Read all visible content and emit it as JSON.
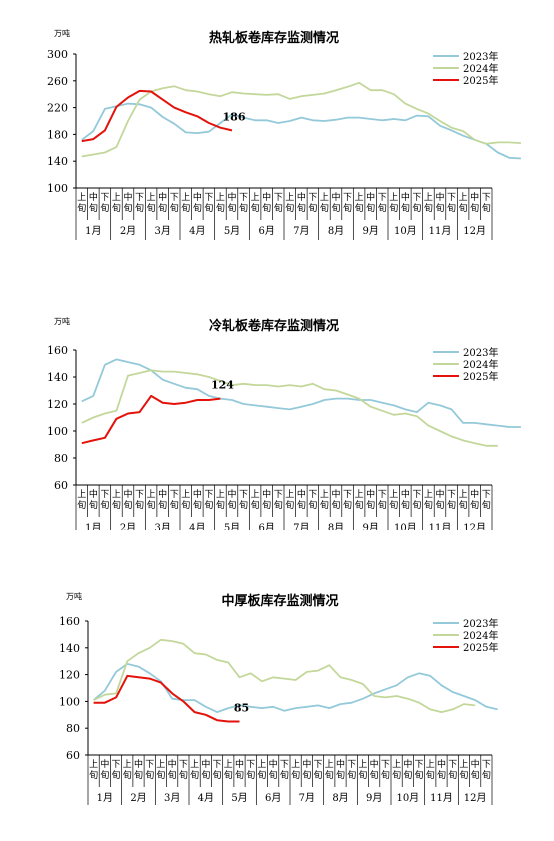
{
  "series_colors": {
    "2023": "#93c9d9",
    "2024": "#c4d79b",
    "2025": "#e3120b"
  },
  "month_labels": [
    "1月",
    "2月",
    "3月",
    "4月",
    "5月",
    "6月",
    "7月",
    "8月",
    "9月",
    "10月",
    "11月",
    "12月"
  ],
  "decade_labels": [
    "上旬",
    "中旬",
    "下旬"
  ],
  "chart_data": [
    {
      "type": "line",
      "title": "热轧板卷库存监测情况",
      "unit": "万吨",
      "ylim": [
        100,
        300
      ],
      "yticks": [
        100,
        140,
        180,
        220,
        260,
        300
      ],
      "grid": false,
      "legend": "top-right",
      "annotation": {
        "text": "186",
        "series": "2025"
      },
      "series": [
        {
          "name": "2023年",
          "key": "2023",
          "values": [
            172,
            185,
            218,
            222,
            226,
            225,
            220,
            206,
            196,
            183,
            182,
            184,
            197,
            210,
            205,
            201,
            201,
            197,
            200,
            205,
            201,
            200,
            202,
            205,
            205,
            203,
            201,
            203,
            201,
            208,
            207,
            193,
            186,
            178,
            172,
            166,
            153,
            145,
            144
          ]
        },
        {
          "name": "2024年",
          "key": "2024",
          "values": [
            147,
            150,
            153,
            161,
            200,
            232,
            244,
            249,
            252,
            246,
            244,
            240,
            237,
            243,
            241,
            240,
            239,
            240,
            233,
            237,
            239,
            241,
            246,
            251,
            257,
            246,
            246,
            240,
            226,
            218,
            211,
            200,
            190,
            185,
            172,
            166,
            168,
            168,
            167
          ]
        },
        {
          "name": "2025年",
          "key": "2025",
          "values": [
            170,
            173,
            186,
            221,
            235,
            245,
            244,
            232,
            220,
            213,
            207,
            197,
            190,
            186
          ]
        }
      ]
    },
    {
      "type": "line",
      "title": "冷轧板卷库存监测情况",
      "unit": "万吨",
      "ylim": [
        60,
        160
      ],
      "yticks": [
        60,
        80,
        100,
        120,
        140,
        160
      ],
      "grid": false,
      "legend": "top-right",
      "annotation": {
        "text": "124",
        "series": "2025"
      },
      "series": [
        {
          "name": "2023年",
          "key": "2023",
          "values": [
            122,
            126,
            149,
            153,
            151,
            149,
            145,
            138,
            135,
            132,
            131,
            126,
            124,
            123,
            120,
            119,
            118,
            117,
            116,
            118,
            120,
            123,
            124,
            124,
            123,
            123,
            121,
            119,
            116,
            114,
            121,
            119,
            116,
            106,
            106,
            105,
            104,
            103,
            103
          ]
        },
        {
          "name": "2024年",
          "key": "2024",
          "values": [
            106,
            110,
            113,
            115,
            141,
            143,
            145,
            144,
            144,
            143,
            142,
            140,
            137,
            134,
            135,
            134,
            134,
            133,
            134,
            133,
            135,
            131,
            130,
            127,
            124,
            118,
            115,
            112,
            113,
            111,
            104,
            100,
            96,
            93,
            91,
            89,
            89
          ]
        },
        {
          "name": "2025年",
          "key": "2025",
          "values": [
            91,
            93,
            95,
            109,
            113,
            114,
            126,
            121,
            120,
            121,
            123,
            123,
            124
          ]
        }
      ]
    },
    {
      "type": "line",
      "title": "中厚板库存监测情况",
      "unit": "万吨",
      "ylim": [
        60,
        160
      ],
      "yticks": [
        60,
        80,
        100,
        120,
        140,
        160
      ],
      "grid": false,
      "legend": "top-right",
      "annotation": {
        "text": "85",
        "series": "2025"
      },
      "series": [
        {
          "name": "2023年",
          "key": "2023",
          "values": [
            101,
            108,
            122,
            128,
            126,
            121,
            115,
            102,
            101,
            101,
            96,
            92,
            95,
            97,
            96,
            95,
            96,
            93,
            95,
            96,
            97,
            95,
            98,
            99,
            102,
            106,
            109,
            112,
            118,
            121,
            119,
            112,
            107,
            104,
            101,
            96,
            94
          ]
        },
        {
          "name": "2024年",
          "key": "2024",
          "values": [
            101,
            105,
            106,
            130,
            136,
            140,
            146,
            145,
            143,
            136,
            135,
            131,
            129,
            118,
            121,
            115,
            118,
            117,
            116,
            122,
            123,
            127,
            118,
            116,
            113,
            104,
            103,
            104,
            102,
            99,
            94,
            92,
            94,
            98,
            97
          ]
        },
        {
          "name": "2025年",
          "key": "2025",
          "values": [
            99,
            99,
            103,
            119,
            118,
            117,
            114,
            106,
            100,
            92,
            90,
            86,
            85,
            85
          ]
        }
      ]
    }
  ]
}
